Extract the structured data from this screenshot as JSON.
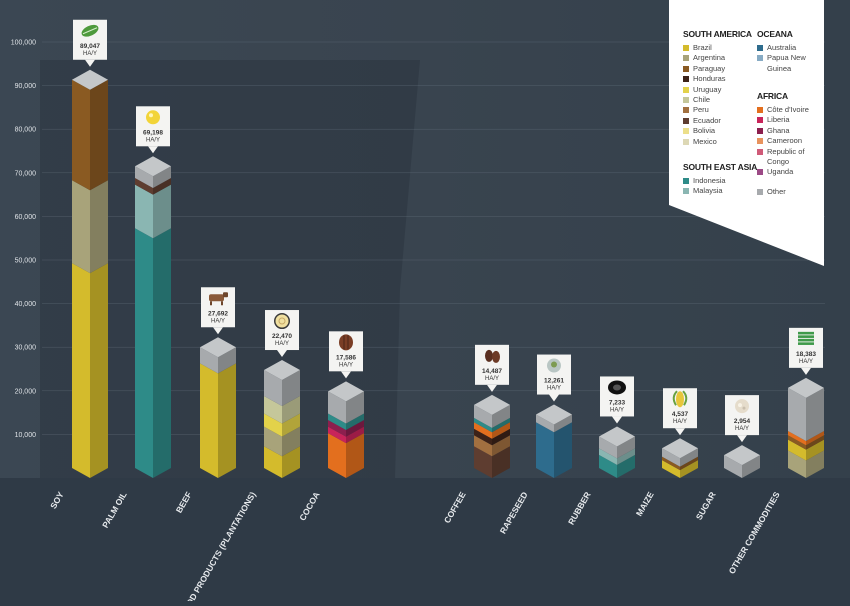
{
  "chart_data": {
    "type": "bar",
    "title": "",
    "xlabel": "",
    "ylabel": "",
    "ylim": [
      0,
      100000
    ],
    "yticks": [
      "10,000",
      "20,000",
      "30,000",
      "40,000",
      "50,000",
      "60,000",
      "70,000",
      "80,000",
      "90,000",
      "100,000"
    ],
    "grid": true,
    "unit": "HA/Y",
    "categories": [
      {
        "name": "SOY",
        "total": 89047,
        "total_label": "89,047",
        "icon": "soy-leaf-icon",
        "segments": [
          {
            "region": "Brazil",
            "value": 47000
          },
          {
            "region": "Argentina",
            "value": 19000
          },
          {
            "region": "Paraguay",
            "value": 23047
          }
        ]
      },
      {
        "name": "PALM OIL",
        "total": 69198,
        "total_label": "69,198",
        "icon": "oil-drop-icon",
        "segments": [
          {
            "region": "Indonesia",
            "value": 55000
          },
          {
            "region": "Malaysia",
            "value": 10000
          },
          {
            "region": "Ecuador",
            "value": 1500
          },
          {
            "region": "Other",
            "value": 2698
          }
        ]
      },
      {
        "name": "BEEF",
        "total": 27692,
        "total_label": "27,692",
        "icon": "cow-icon",
        "segments": [
          {
            "region": "Brazil",
            "value": 24000
          },
          {
            "region": "Other",
            "value": 3692
          }
        ]
      },
      {
        "name": "WOOD PRODUCTS (PLANTATIONS)",
        "total": 22470,
        "total_label": "22,470",
        "icon": "wood-log-icon",
        "segments": [
          {
            "region": "Brazil",
            "value": 5000
          },
          {
            "region": "Argentina",
            "value": 4500
          },
          {
            "region": "Uruguay",
            "value": 3000
          },
          {
            "region": "Chile",
            "value": 4000
          },
          {
            "region": "Other",
            "value": 5970
          }
        ]
      },
      {
        "name": "COCOA",
        "total": 17586,
        "total_label": "17,586",
        "icon": "cocoa-bean-icon",
        "segments": [
          {
            "region": "Côte d'Ivoire",
            "value": 8000
          },
          {
            "region": "Liberia",
            "value": 1500
          },
          {
            "region": "Ghana",
            "value": 1500
          },
          {
            "region": "Indonesia",
            "value": 1500
          },
          {
            "region": "Other",
            "value": 5086
          }
        ]
      },
      {
        "name": "COFFEE",
        "total": 14487,
        "total_label": "14,487",
        "icon": "coffee-bean-icon",
        "segments": [
          {
            "region": "Ecuador",
            "value": 5000
          },
          {
            "region": "Peru",
            "value": 2500
          },
          {
            "region": "Honduras",
            "value": 1500
          },
          {
            "region": "Côte d'Ivoire",
            "value": 1500
          },
          {
            "region": "Indonesia",
            "value": 1000
          },
          {
            "region": "Other",
            "value": 2987
          }
        ]
      },
      {
        "name": "RAPESEED",
        "total": 12261,
        "total_label": "12,261",
        "icon": "rapeseed-icon",
        "segments": [
          {
            "region": "Australia",
            "value": 10500
          },
          {
            "region": "Other",
            "value": 1761
          }
        ]
      },
      {
        "name": "RUBBER",
        "total": 7233,
        "total_label": "7,233",
        "icon": "rubber-tyre-icon",
        "segments": [
          {
            "region": "Indonesia",
            "value": 3000
          },
          {
            "region": "Malaysia",
            "value": 1500
          },
          {
            "region": "Other",
            "value": 2733
          }
        ]
      },
      {
        "name": "MAIZE",
        "total": 4537,
        "total_label": "4,537",
        "icon": "maize-cob-icon",
        "segments": [
          {
            "region": "Brazil",
            "value": 1800
          },
          {
            "region": "Paraguay",
            "value": 800
          },
          {
            "region": "Other",
            "value": 1937
          }
        ]
      },
      {
        "name": "SUGAR",
        "total": 2954,
        "total_label": "2,954",
        "icon": "sugar-icon",
        "segments": [
          {
            "region": "Other",
            "value": 2954
          }
        ]
      },
      {
        "name": "OTHER COMMODITIES",
        "total": 18383,
        "total_label": "18,383",
        "icon": "stack-icon",
        "segments": [
          {
            "region": "Argentina",
            "value": 4000
          },
          {
            "region": "Brazil",
            "value": 2500
          },
          {
            "region": "Paraguay",
            "value": 1000
          },
          {
            "region": "Côte d'Ivoire",
            "value": 1000
          },
          {
            "region": "Other",
            "value": 9883
          }
        ]
      }
    ]
  },
  "legend": {
    "groups": [
      {
        "title": "SOUTH AMERICA",
        "items": [
          {
            "label": "Brazil",
            "color": "#d4bb2c"
          },
          {
            "label": "Argentina",
            "color": "#a8a37a"
          },
          {
            "label": "Paraguay",
            "color": "#8a5a22"
          },
          {
            "label": "Honduras",
            "color": "#3c2218"
          },
          {
            "label": "Uruguay",
            "color": "#e3d24a"
          },
          {
            "label": "Chile",
            "color": "#c5c79a"
          },
          {
            "label": "Peru",
            "color": "#a27040"
          },
          {
            "label": "Ecuador",
            "color": "#5e3d30"
          },
          {
            "label": "Bolivia",
            "color": "#ecdf8a"
          },
          {
            "label": "Mexico",
            "color": "#ddd8b5"
          }
        ]
      },
      {
        "title": "SOUTH EAST ASIA",
        "items": [
          {
            "label": "Indonesia",
            "color": "#2e8b88"
          },
          {
            "label": "Malaysia",
            "color": "#8ab6b2"
          }
        ]
      },
      {
        "title": "OCEANA",
        "items": [
          {
            "label": "Australia",
            "color": "#2e6c8d"
          },
          {
            "label": "Papua New Guinea",
            "color": "#87abc4"
          }
        ]
      },
      {
        "title": "AFRICA",
        "items": [
          {
            "label": "Côte d'Ivoire",
            "color": "#e36f1e"
          },
          {
            "label": "Liberia",
            "color": "#c8245a"
          },
          {
            "label": "Ghana",
            "color": "#8c1f4e"
          },
          {
            "label": "Cameroon",
            "color": "#e8935e"
          },
          {
            "label": "Republic of Congo",
            "color": "#cf5a78"
          },
          {
            "label": "Uganda",
            "color": "#9c4a86"
          }
        ]
      },
      {
        "title": "",
        "items": [
          {
            "label": "Other",
            "color": "#a7aaad"
          }
        ]
      }
    ]
  }
}
